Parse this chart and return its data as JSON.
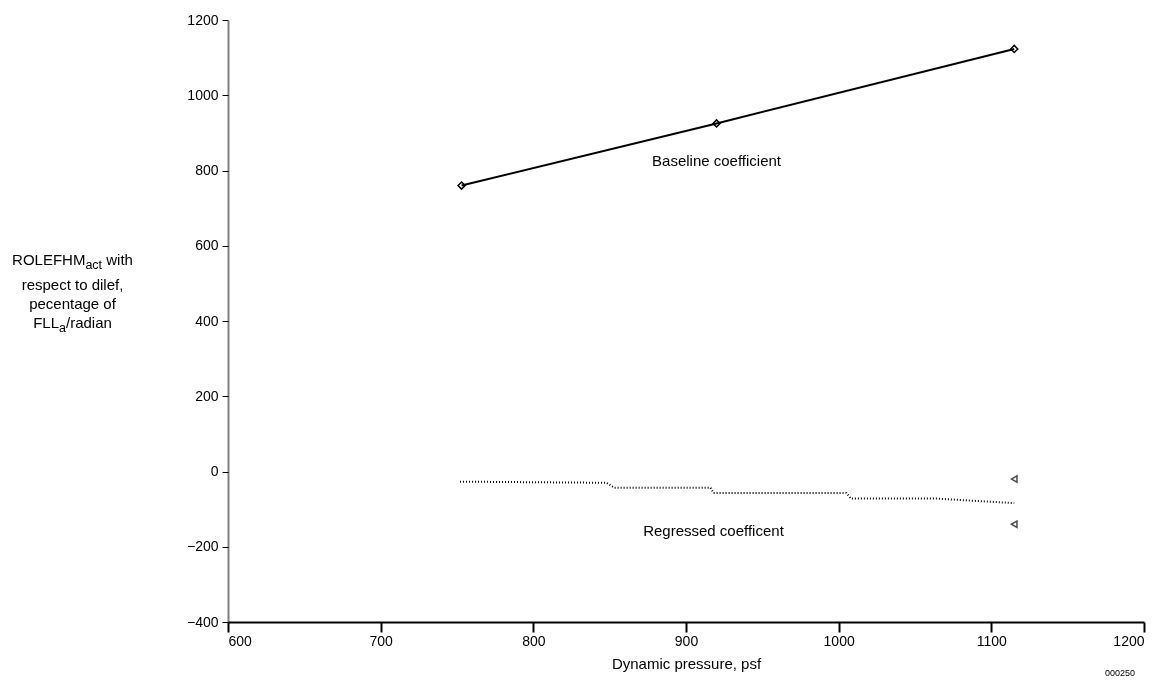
{
  "chart_data": {
    "type": "line",
    "xlabel": "Dynamic pressure, psf",
    "ylabel": "ROLEFHM$_{act}$ with respect to dilef, pecentage of FLL$_{a}$/radian",
    "xlim": [
      600,
      1200
    ],
    "xticks": [
      600,
      700,
      800,
      900,
      1000,
      1100,
      1200
    ],
    "ylim": [
      -400,
      1200
    ],
    "yticks": [
      -400,
      -200,
      0,
      200,
      400,
      600,
      800,
      1000,
      1200
    ],
    "grid": false,
    "series": [
      {
        "name": "Baseline coefficient",
        "color": "#000000",
        "marker": "diamond",
        "line_style": "solid",
        "x": [
          753,
          920,
          1115
        ],
        "values": [
          760,
          925,
          1123
        ]
      },
      {
        "name": "Regressed coefficent",
        "color": "#000000",
        "marker": "none",
        "line_style": "dotted",
        "x": [
          752,
          848,
          853,
          916,
          918,
          1005,
          1008,
          1064,
          1115
        ],
        "values": [
          -27,
          -30,
          -43,
          -43,
          -57,
          -57,
          -72,
          -72,
          -84
        ]
      },
      {
        "type": "scatter",
        "color": "#000000",
        "marker": "triangle",
        "x": [
          1115,
          1115
        ],
        "values": [
          -20,
          -140
        ]
      }
    ],
    "annotations": [
      "000250"
    ]
  }
}
